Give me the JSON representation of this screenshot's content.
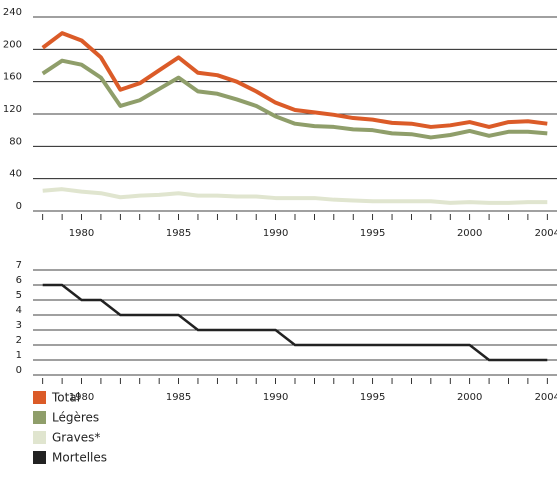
{
  "chart_data": [
    {
      "type": "line",
      "x": [
        1978,
        1979,
        1980,
        1981,
        1982,
        1983,
        1984,
        1985,
        1986,
        1987,
        1988,
        1989,
        1990,
        1991,
        1992,
        1993,
        1994,
        1995,
        1996,
        1997,
        1998,
        1999,
        2000,
        2001,
        2002,
        2003,
        2004
      ],
      "series": [
        {
          "name": "Total",
          "color": "#db5b28",
          "values": [
            202,
            220,
            211,
            190,
            150,
            158,
            174,
            190,
            171,
            168,
            160,
            148,
            134,
            125,
            122,
            119,
            115,
            113,
            109,
            108,
            104,
            106,
            110,
            104,
            110,
            111,
            108
          ]
        },
        {
          "name": "Légères",
          "color": "#8f9e6a",
          "values": [
            170,
            186,
            181,
            165,
            130,
            137,
            151,
            165,
            148,
            145,
            138,
            130,
            117,
            108,
            105,
            104,
            101,
            100,
            96,
            95,
            91,
            94,
            99,
            93,
            98,
            98,
            96
          ]
        },
        {
          "name": "Graves*",
          "color": "#e0e5cf",
          "values": [
            25,
            27,
            24,
            22,
            17,
            19,
            20,
            22,
            19,
            19,
            18,
            18,
            16,
            16,
            16,
            14,
            13,
            12,
            12,
            12,
            12,
            10,
            11,
            10,
            10,
            11,
            11
          ]
        }
      ],
      "xlim": [
        1977.5,
        2004.5
      ],
      "xticks": [
        1980,
        1985,
        1990,
        1995,
        2000,
        2004
      ],
      "ylim": [
        0,
        240
      ],
      "yticks": [
        0,
        40,
        80,
        120,
        160,
        200,
        240
      ],
      "grid": true
    },
    {
      "type": "line",
      "x": [
        1978,
        1979,
        1980,
        1981,
        1982,
        1983,
        1984,
        1985,
        1986,
        1987,
        1988,
        1989,
        1990,
        1991,
        1992,
        1993,
        1994,
        1995,
        1996,
        1997,
        1998,
        1999,
        2000,
        2001,
        2002,
        2003,
        2004
      ],
      "series": [
        {
          "name": "Mortelles",
          "color": "#222222",
          "values": [
            6,
            6,
            5,
            5,
            4,
            4,
            4,
            4,
            3,
            3,
            3,
            3,
            3,
            2,
            2,
            2,
            2,
            2,
            2,
            2,
            2,
            2,
            2,
            1,
            1,
            1,
            1
          ]
        }
      ],
      "xlim": [
        1977.5,
        2004.5
      ],
      "xticks": [
        1980,
        1985,
        1990,
        1995,
        2000,
        2004
      ],
      "ylim": [
        0,
        7
      ],
      "yticks": [
        0,
        1,
        2,
        3,
        4,
        5,
        6,
        7
      ],
      "grid": true
    }
  ]
}
